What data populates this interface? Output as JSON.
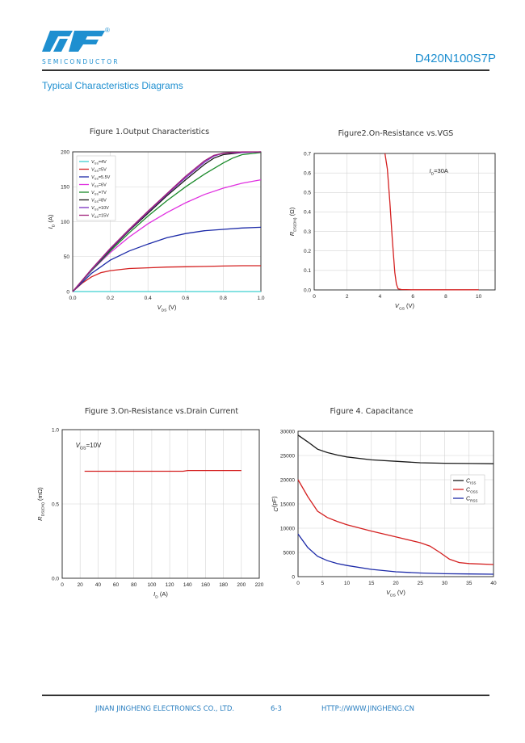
{
  "header": {
    "logo_subtext": "SEMICONDUCTOR",
    "registered_mark": "®",
    "part_number": "D420N100S7P",
    "section_title": "Typical Characteristics Diagrams"
  },
  "figures": {
    "fig1_title": "Figure 1.Output Characteristics",
    "fig2_title": "Figure2.On-Resistance vs.VGS",
    "fig3_title": "Figure 3.On-Resistance vs.Drain Current",
    "fig4_title": "Figure 4. Capacitance"
  },
  "footer": {
    "company": "JINAN JINGHENG ELECTRONICS  CO., LTD.",
    "page": "6-3",
    "url": "HTTP://WWW.JINGHENG.CN"
  },
  "chart_data": [
    {
      "type": "line",
      "title": "Figure 1.Output Characteristics",
      "xlabel": "VDS (V)",
      "ylabel": "ID (A)",
      "xlim": [
        0,
        1.0
      ],
      "ylim": [
        0,
        200
      ],
      "xticks": [
        "0.0",
        "0.2",
        "0.4",
        "0.6",
        "0.8",
        "1.0"
      ],
      "yticks": [
        "0",
        "50",
        "100",
        "150",
        "200"
      ],
      "grid": true,
      "legend": "top-left",
      "series": [
        {
          "name": "VGS=4V",
          "color": "#3fd0d0",
          "x": [
            0.0,
            0.1,
            0.2,
            0.4,
            0.6,
            0.8,
            1.0
          ],
          "y": [
            0,
            0,
            0,
            0,
            0,
            0,
            0
          ]
        },
        {
          "name": "VGS=5V",
          "color": "#d42020",
          "x": [
            0.0,
            0.05,
            0.1,
            0.15,
            0.2,
            0.3,
            0.4,
            0.5,
            0.6,
            0.7,
            0.8,
            0.9,
            1.0
          ],
          "y": [
            0,
            12,
            21,
            27,
            30,
            33,
            34,
            35,
            35.5,
            36,
            36.5,
            37,
            37
          ]
        },
        {
          "name": "VGS=5.5V",
          "color": "#1c2aa8",
          "x": [
            0.0,
            0.1,
            0.2,
            0.3,
            0.4,
            0.5,
            0.6,
            0.7,
            0.8,
            0.9,
            1.0
          ],
          "y": [
            0,
            26,
            45,
            58,
            68,
            77,
            83,
            87,
            89,
            91,
            92
          ]
        },
        {
          "name": "VGS=6V",
          "color": "#e030e0",
          "x": [
            0.0,
            0.1,
            0.2,
            0.3,
            0.4,
            0.5,
            0.6,
            0.7,
            0.8,
            0.9,
            1.0
          ],
          "y": [
            0,
            30,
            56,
            78,
            97,
            113,
            127,
            139,
            148,
            155,
            160
          ]
        },
        {
          "name": "VGS=7V",
          "color": "#1a8a2a",
          "x": [
            0.0,
            0.1,
            0.2,
            0.3,
            0.4,
            0.5,
            0.6,
            0.7,
            0.8,
            0.85,
            0.9,
            1.0
          ],
          "y": [
            0,
            30,
            58,
            84,
            108,
            130,
            150,
            168,
            184,
            191,
            196,
            199
          ]
        },
        {
          "name": "VGS=8V",
          "color": "#1a1a1a",
          "x": [
            0.0,
            0.1,
            0.2,
            0.3,
            0.4,
            0.5,
            0.6,
            0.7,
            0.75,
            0.8,
            0.9,
            1.0
          ],
          "y": [
            0,
            31,
            60,
            87,
            112,
            137,
            160,
            182,
            191,
            196,
            199,
            200
          ]
        },
        {
          "name": "VGS=10V",
          "color": "#7a30c0",
          "x": [
            0.0,
            0.1,
            0.2,
            0.3,
            0.4,
            0.5,
            0.6,
            0.7,
            0.75,
            0.8,
            0.9,
            1.0
          ],
          "y": [
            0,
            31,
            61,
            88,
            114,
            139,
            163,
            185,
            194,
            198,
            199,
            200
          ]
        },
        {
          "name": "VGS=15V",
          "color": "#a0207a",
          "x": [
            0.0,
            0.1,
            0.2,
            0.3,
            0.4,
            0.5,
            0.6,
            0.7,
            0.75,
            0.8,
            0.9,
            1.0
          ],
          "y": [
            0,
            32,
            62,
            89,
            115,
            140,
            165,
            187,
            195,
            198,
            200,
            200
          ]
        }
      ]
    },
    {
      "type": "line",
      "title": "Figure2.On-Resistance vs.VGS",
      "xlabel": "VGS (V)",
      "ylabel": "RDS(ON) (Ω)",
      "annotation": "ID=30A",
      "xlim": [
        0,
        11
      ],
      "ylim": [
        0,
        0.7
      ],
      "xticks": [
        "0",
        "2",
        "4",
        "6",
        "8",
        "10"
      ],
      "yticks": [
        "0.0",
        "0.1",
        "0.2",
        "0.3",
        "0.4",
        "0.5",
        "0.6",
        "0.7"
      ],
      "grid": true,
      "series": [
        {
          "name": "",
          "color": "#d42020",
          "x": [
            4.3,
            4.45,
            4.6,
            4.75,
            4.9,
            5.0,
            5.1,
            5.3,
            6,
            8,
            10
          ],
          "y": [
            0.7,
            0.62,
            0.45,
            0.26,
            0.09,
            0.03,
            0.006,
            0.002,
            0.001,
            0.001,
            0.001
          ]
        }
      ]
    },
    {
      "type": "line",
      "title": "Figure 3.On-Resistance vs.Drain Current",
      "xlabel": "ID (A)",
      "ylabel": "RDS(ON) (mΩ)",
      "annotation": "VGS=10V",
      "xlim": [
        0,
        220
      ],
      "ylim": [
        0,
        1.0
      ],
      "xticks": [
        "0",
        "20",
        "40",
        "60",
        "80",
        "100",
        "120",
        "140",
        "160",
        "180",
        "200",
        "220"
      ],
      "yticks": [
        "0.0",
        "0.5",
        "1.0"
      ],
      "grid": true,
      "series": [
        {
          "name": "",
          "color": "#d42020",
          "x": [
            25,
            60,
            100,
            135,
            140,
            170,
            200
          ],
          "y": [
            0.72,
            0.72,
            0.72,
            0.72,
            0.725,
            0.725,
            0.725
          ]
        }
      ]
    },
    {
      "type": "line",
      "title": "Figure 4. Capacitance",
      "xlabel": "VDS (V)",
      "ylabel": "C(pF)",
      "xlim": [
        0,
        40
      ],
      "ylim": [
        0,
        30000
      ],
      "xticks": [
        "0",
        "5",
        "10",
        "15",
        "20",
        "25",
        "30",
        "35",
        "40"
      ],
      "yticks": [
        "0",
        "5000",
        "10000",
        "15000",
        "20000",
        "25000",
        "30000"
      ],
      "grid": true,
      "legend": "right",
      "series": [
        {
          "name": "CISS",
          "color": "#1a1a1a",
          "x": [
            0,
            2,
            4,
            6,
            8,
            10,
            15,
            20,
            25,
            30,
            35,
            40
          ],
          "y": [
            29200,
            27800,
            26300,
            25600,
            25100,
            24700,
            24100,
            23800,
            23500,
            23400,
            23350,
            23300
          ]
        },
        {
          "name": "COSS",
          "color": "#d42020",
          "x": [
            0,
            2,
            4,
            6,
            8,
            10,
            15,
            20,
            25,
            27,
            29,
            31,
            33,
            35,
            40
          ],
          "y": [
            20000,
            16500,
            13500,
            12200,
            11400,
            10700,
            9400,
            8200,
            7000,
            6300,
            5000,
            3600,
            2900,
            2700,
            2500
          ]
        },
        {
          "name": "CRSS",
          "color": "#1c2aa8",
          "x": [
            0,
            2,
            4,
            6,
            8,
            10,
            15,
            20,
            25,
            30,
            35,
            40
          ],
          "y": [
            8800,
            6000,
            4200,
            3300,
            2700,
            2300,
            1500,
            1000,
            750,
            600,
            550,
            500
          ]
        }
      ]
    }
  ]
}
